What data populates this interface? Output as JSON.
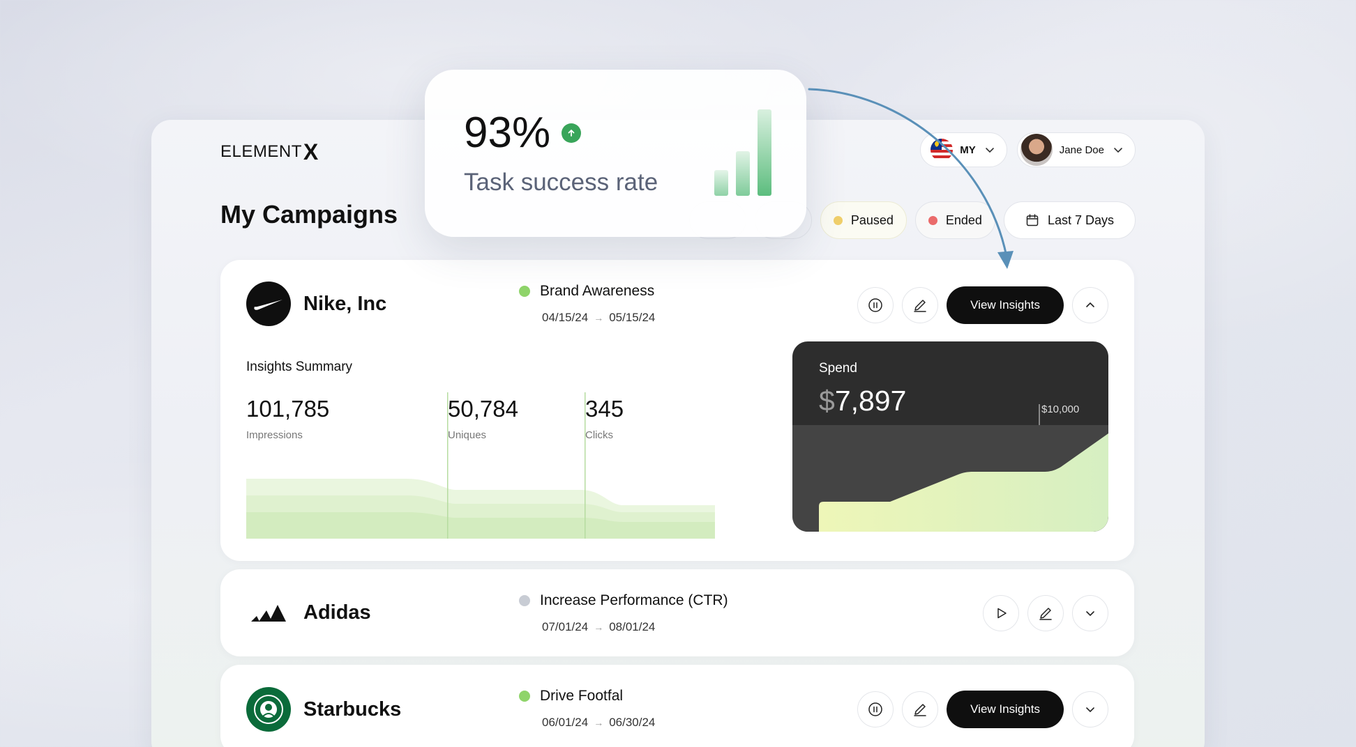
{
  "app": {
    "logo_text": "ELEMENT",
    "logo_mark": "X",
    "page_title": "My Campaigns"
  },
  "header": {
    "locale": {
      "code": "MY",
      "icon": "malaysia-flag-icon"
    },
    "user": {
      "name": "Jane Doe",
      "icon": "avatar"
    }
  },
  "filters": {
    "paused": {
      "label": "Paused",
      "color": "#f0cf6b"
    },
    "ended": {
      "label": "Ended",
      "color": "#ea6b6b"
    },
    "date_range": {
      "label": "Last 7 Days",
      "icon": "calendar-icon"
    }
  },
  "kpi": {
    "value": "93%",
    "label": "Task success rate",
    "trend_icon": "arrow-up-icon",
    "bars": [
      0.3,
      0.52,
      1.0
    ]
  },
  "campaigns": [
    {
      "brand": "Nike, Inc",
      "campaign": "Brand Awareness",
      "status_color": "#8fd46a",
      "start": "04/15/24",
      "end": "05/15/24",
      "primary_action": "View Insights",
      "expanded": true,
      "insights": {
        "title": "Insights Summary",
        "stats": [
          {
            "value": "101,785",
            "label": "Impressions"
          },
          {
            "value": "50,784",
            "label": "Uniques"
          },
          {
            "value": "345",
            "label": "Clicks"
          }
        ],
        "spend": {
          "label": "Spend",
          "currency": "$",
          "amount": "7,897",
          "limit": "$10,000"
        }
      }
    },
    {
      "brand": "Adidas",
      "campaign": "Increase Performance (CTR)",
      "status_color": "#c8ccd4",
      "start": "07/01/24",
      "end": "08/01/24"
    },
    {
      "brand": "Starbucks",
      "campaign": "Drive Footfal",
      "status_color": "#8fd46a",
      "start": "06/01/24",
      "end": "06/30/24",
      "primary_action": "View Insights"
    }
  ],
  "colors": {
    "accent_dark": "#0f0f0f",
    "success": "#39a55a",
    "arrow": "#5a90b8"
  }
}
